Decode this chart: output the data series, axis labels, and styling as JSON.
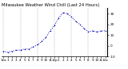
{
  "title": "Milwaukee Weather Wind Chill (Last 24 Hours)",
  "y_values": [
    -5,
    -6,
    -5,
    -4,
    -4,
    -3,
    -3,
    -1,
    1,
    4,
    8,
    14,
    19,
    26,
    31,
    30,
    27,
    23,
    20,
    16,
    13,
    14,
    13,
    14,
    14
  ],
  "ylim": [
    -10,
    35
  ],
  "yticks": [
    -10,
    0,
    10,
    20,
    30
  ],
  "ytick_labels": [
    "-10",
    "0",
    "10",
    "20",
    "30"
  ],
  "line_color": "#0000bb",
  "bg_color": "#ffffff",
  "plot_bg": "#ffffff",
  "grid_color": "#999999",
  "title_color": "#000000",
  "title_fontsize": 3.8,
  "tick_fontsize": 3.0,
  "x_hour_labels": [
    "12a",
    "1",
    "2",
    "3",
    "4",
    "5",
    "6",
    "7",
    "8",
    "9",
    "10",
    "11",
    "12p",
    "1",
    "2",
    "3",
    "4",
    "5",
    "6",
    "7",
    "8",
    "9",
    "10",
    "11",
    "12a"
  ]
}
